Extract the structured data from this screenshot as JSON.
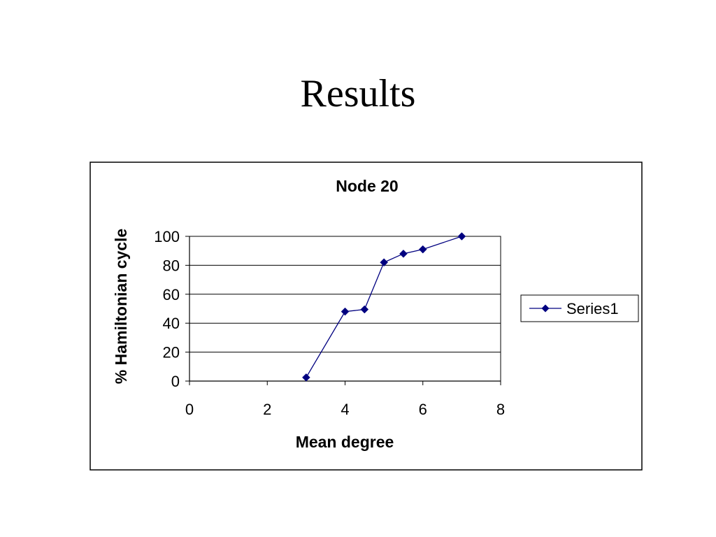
{
  "slide": {
    "title": "Results"
  },
  "chart_data": {
    "type": "line",
    "title": "Node 20",
    "xlabel": "Mean degree",
    "ylabel": "% Hamiltonian cycle",
    "xlim": [
      0,
      8
    ],
    "ylim": [
      0,
      100
    ],
    "x_ticks": [
      0,
      2,
      4,
      6,
      8
    ],
    "y_ticks": [
      0,
      20,
      40,
      60,
      80,
      100
    ],
    "grid": {
      "horizontal": true,
      "vertical": false
    },
    "legend": {
      "position": "right"
    },
    "series": [
      {
        "name": "Series1",
        "color": "#000080",
        "marker": "diamond",
        "x": [
          3,
          4,
          4.5,
          5,
          5.5,
          6,
          7
        ],
        "y": [
          2.5,
          48,
          49.5,
          82,
          88,
          91,
          100
        ]
      }
    ]
  }
}
